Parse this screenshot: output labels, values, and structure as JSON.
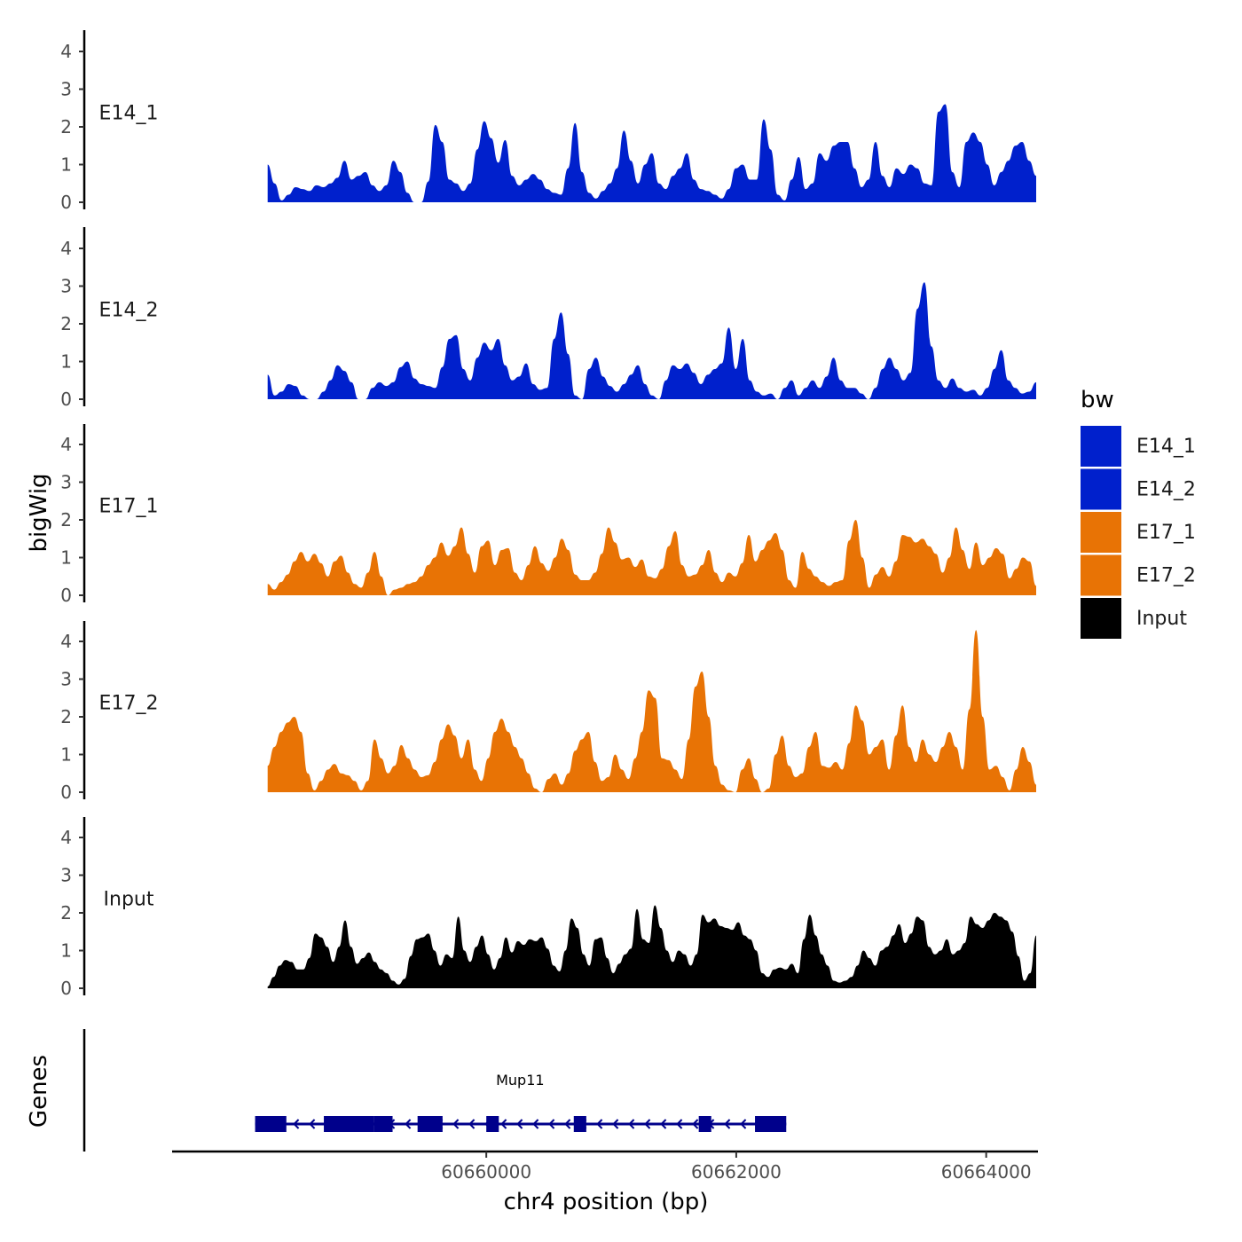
{
  "chart_data": {
    "type": "area",
    "title": "",
    "xlabel": "chr4 position (bp)",
    "ylabel": "bigWig",
    "genes_label": "Genes",
    "xlim": [
      60657500,
      60664400
    ],
    "data_xrange": [
      60658250,
      60664400
    ],
    "xticks": [
      60660000,
      60662000,
      60664000
    ],
    "xtick_labels": [
      "60660000",
      "60662000",
      "60664000"
    ],
    "ylim": [
      0,
      4.5
    ],
    "yticks": [
      0,
      1,
      2,
      3,
      4
    ],
    "ytick_labels": [
      "0",
      "1",
      "2",
      "3",
      "4"
    ],
    "legend": {
      "title": "bw",
      "position": "right",
      "entries": [
        {
          "label": "E14_1",
          "color": "#0020CC"
        },
        {
          "label": "E14_2",
          "color": "#0020CC"
        },
        {
          "label": "E17_1",
          "color": "#E87305"
        },
        {
          "label": "E17_2",
          "color": "#E87305"
        },
        {
          "label": "Input",
          "color": "#000000"
        }
      ]
    },
    "series": [
      {
        "name": "E14_1",
        "color": "#0020CC",
        "values": [
          1.0,
          0.5,
          0.05,
          0.2,
          0.4,
          0.35,
          0.3,
          0.45,
          0.4,
          0.5,
          0.65,
          1.1,
          0.6,
          0.7,
          0.8,
          0.45,
          0.3,
          0.45,
          1.1,
          0.8,
          0.25,
          0.0,
          0.0,
          0.55,
          2.05,
          1.6,
          0.6,
          0.5,
          0.3,
          0.5,
          1.4,
          2.15,
          1.7,
          1.05,
          1.65,
          0.7,
          0.45,
          0.6,
          0.75,
          0.6,
          0.35,
          0.25,
          0.2,
          0.9,
          2.1,
          0.8,
          0.25,
          0.1,
          0.3,
          0.5,
          0.9,
          1.9,
          1.1,
          0.5,
          1.0,
          1.3,
          0.5,
          0.35,
          0.7,
          0.9,
          1.3,
          0.6,
          0.35,
          0.3,
          0.2,
          0.1,
          0.35,
          0.9,
          1.0,
          0.6,
          0.6,
          2.2,
          1.4,
          0.2,
          0.05,
          0.6,
          1.2,
          0.35,
          0.5,
          1.3,
          1.1,
          1.5,
          1.6,
          1.6,
          0.9,
          0.4,
          0.6,
          1.6,
          0.7,
          0.4,
          0.9,
          0.75,
          1.0,
          0.9,
          0.5,
          0.45,
          2.4,
          2.6,
          0.8,
          0.4,
          1.6,
          1.85,
          1.6,
          1.0,
          0.45,
          0.8,
          1.1,
          1.5,
          1.6,
          1.1,
          0.7
        ]
      },
      {
        "name": "E14_2",
        "color": "#0020CC",
        "values": [
          0.65,
          0.1,
          0.2,
          0.4,
          0.35,
          0.1,
          0.0,
          0.0,
          0.2,
          0.5,
          0.9,
          0.75,
          0.45,
          0.0,
          0.0,
          0.3,
          0.45,
          0.35,
          0.45,
          0.85,
          1.0,
          0.55,
          0.4,
          0.35,
          0.3,
          0.85,
          1.6,
          1.7,
          0.8,
          0.5,
          1.1,
          1.5,
          1.3,
          1.6,
          0.9,
          0.5,
          0.6,
          0.95,
          0.4,
          0.25,
          0.3,
          1.6,
          2.3,
          1.2,
          0.1,
          0.0,
          0.8,
          1.1,
          0.6,
          0.35,
          0.2,
          0.4,
          0.65,
          0.9,
          0.4,
          0.1,
          0.0,
          0.5,
          0.9,
          0.8,
          0.95,
          0.7,
          0.4,
          0.65,
          0.8,
          0.95,
          1.9,
          0.8,
          1.6,
          0.5,
          0.2,
          0.1,
          0.15,
          0.0,
          0.3,
          0.5,
          0.1,
          0.3,
          0.5,
          0.3,
          0.6,
          1.1,
          0.5,
          0.3,
          0.3,
          0.15,
          0.0,
          0.3,
          0.8,
          1.1,
          0.8,
          0.5,
          0.7,
          2.4,
          3.1,
          1.4,
          0.5,
          0.3,
          0.55,
          0.3,
          0.2,
          0.25,
          0.1,
          0.3,
          0.8,
          1.3,
          0.5,
          0.3,
          0.15,
          0.2,
          0.45
        ]
      },
      {
        "name": "E17_1",
        "color": "#E87305",
        "values": [
          0.3,
          0.15,
          0.35,
          0.55,
          0.9,
          1.15,
          0.9,
          1.1,
          0.85,
          0.5,
          0.9,
          1.05,
          0.6,
          0.3,
          0.2,
          0.6,
          1.15,
          0.5,
          0.0,
          0.15,
          0.2,
          0.3,
          0.35,
          0.5,
          0.8,
          1.0,
          1.4,
          1.05,
          1.3,
          1.8,
          1.1,
          0.6,
          1.3,
          1.45,
          0.8,
          1.2,
          1.25,
          0.6,
          0.4,
          0.8,
          1.3,
          0.85,
          0.65,
          1.0,
          1.5,
          1.2,
          0.55,
          0.4,
          0.4,
          0.6,
          1.1,
          1.8,
          1.4,
          0.95,
          1.0,
          0.75,
          0.95,
          0.5,
          0.45,
          0.7,
          1.3,
          1.7,
          0.8,
          0.5,
          0.55,
          0.8,
          1.2,
          0.6,
          0.35,
          0.6,
          0.5,
          0.85,
          1.6,
          0.9,
          1.2,
          1.45,
          1.65,
          1.2,
          0.4,
          0.2,
          1.15,
          0.7,
          0.5,
          0.35,
          0.25,
          0.35,
          0.4,
          1.45,
          2.0,
          1.0,
          0.2,
          0.55,
          0.75,
          0.5,
          0.9,
          1.6,
          1.55,
          1.4,
          1.5,
          1.3,
          1.1,
          0.6,
          1.0,
          1.8,
          1.2,
          0.7,
          1.4,
          0.8,
          1.0,
          1.25,
          1.1,
          0.45,
          0.7,
          1.0,
          0.9,
          0.25
        ]
      },
      {
        "name": "E17_2",
        "color": "#E87305",
        "values": [
          0.7,
          1.2,
          1.6,
          1.85,
          2.0,
          1.6,
          0.5,
          0.05,
          0.3,
          0.6,
          0.75,
          0.5,
          0.45,
          0.3,
          0.05,
          0.3,
          1.4,
          0.9,
          0.5,
          0.7,
          1.25,
          0.9,
          0.6,
          0.4,
          0.45,
          0.8,
          1.4,
          1.8,
          1.5,
          0.9,
          1.4,
          0.6,
          0.3,
          0.9,
          1.6,
          1.95,
          1.6,
          1.2,
          0.9,
          0.5,
          0.1,
          0.0,
          0.35,
          0.5,
          0.2,
          0.5,
          1.1,
          1.4,
          1.6,
          0.8,
          0.3,
          0.4,
          1.0,
          0.6,
          0.35,
          0.9,
          1.6,
          2.7,
          2.5,
          0.9,
          0.85,
          0.6,
          0.35,
          1.4,
          2.8,
          3.2,
          2.0,
          0.7,
          0.2,
          0.05,
          0.0,
          0.6,
          0.9,
          0.35,
          0.0,
          0.1,
          1.0,
          1.5,
          0.7,
          0.4,
          0.5,
          1.2,
          1.6,
          0.7,
          0.65,
          0.8,
          0.6,
          1.3,
          2.3,
          1.9,
          1.0,
          1.2,
          1.4,
          0.6,
          1.5,
          2.3,
          1.2,
          0.8,
          1.4,
          1.0,
          0.8,
          1.2,
          1.6,
          1.2,
          0.6,
          2.2,
          4.3,
          2.0,
          0.6,
          0.7,
          0.4,
          0.05,
          0.6,
          1.2,
          0.8,
          0.2
        ]
      },
      {
        "name": "Input",
        "color": "#000000",
        "values": [
          0.05,
          0.3,
          0.6,
          0.75,
          0.7,
          0.5,
          0.5,
          0.8,
          1.45,
          1.35,
          1.1,
          0.7,
          1.1,
          1.8,
          1.1,
          0.65,
          0.8,
          0.95,
          0.7,
          0.5,
          0.4,
          0.2,
          0.1,
          0.25,
          0.85,
          1.3,
          1.35,
          1.45,
          1.0,
          0.6,
          0.9,
          0.8,
          1.9,
          1.0,
          0.7,
          1.1,
          1.4,
          0.9,
          0.5,
          0.8,
          1.35,
          0.95,
          1.25,
          1.15,
          1.3,
          1.25,
          1.35,
          1.05,
          0.6,
          0.45,
          1.0,
          1.85,
          1.6,
          0.9,
          0.6,
          1.3,
          1.35,
          0.8,
          0.4,
          0.65,
          0.9,
          1.05,
          2.1,
          1.3,
          1.2,
          2.2,
          1.6,
          1.0,
          0.7,
          1.0,
          0.9,
          0.6,
          0.9,
          1.95,
          1.75,
          1.85,
          1.65,
          1.6,
          1.55,
          1.75,
          1.4,
          1.3,
          1.0,
          0.4,
          0.3,
          0.5,
          0.55,
          0.5,
          0.65,
          0.4,
          1.3,
          1.95,
          1.4,
          0.9,
          0.6,
          0.2,
          0.15,
          0.2,
          0.3,
          0.6,
          1.0,
          0.8,
          0.6,
          1.0,
          1.1,
          1.4,
          1.7,
          1.2,
          1.45,
          1.9,
          1.8,
          1.1,
          0.9,
          1.0,
          1.3,
          0.9,
          1.0,
          1.2,
          1.9,
          1.7,
          1.6,
          1.8,
          2.0,
          1.9,
          1.8,
          1.5,
          0.85,
          0.2,
          0.4,
          1.4
        ]
      }
    ],
    "genes": [
      {
        "name": "Mup11",
        "color": "#00008B",
        "start": 60658150,
        "end": 60662400,
        "strand": "-",
        "exons": [
          [
            60658150,
            60658400
          ],
          [
            60658700,
            60659100
          ],
          [
            60659100,
            60659250
          ],
          [
            60659450,
            60659650
          ],
          [
            60660000,
            60660100
          ],
          [
            60660700,
            60660800
          ],
          [
            60661700,
            60661800
          ],
          [
            60662150,
            60662400
          ]
        ]
      }
    ]
  }
}
